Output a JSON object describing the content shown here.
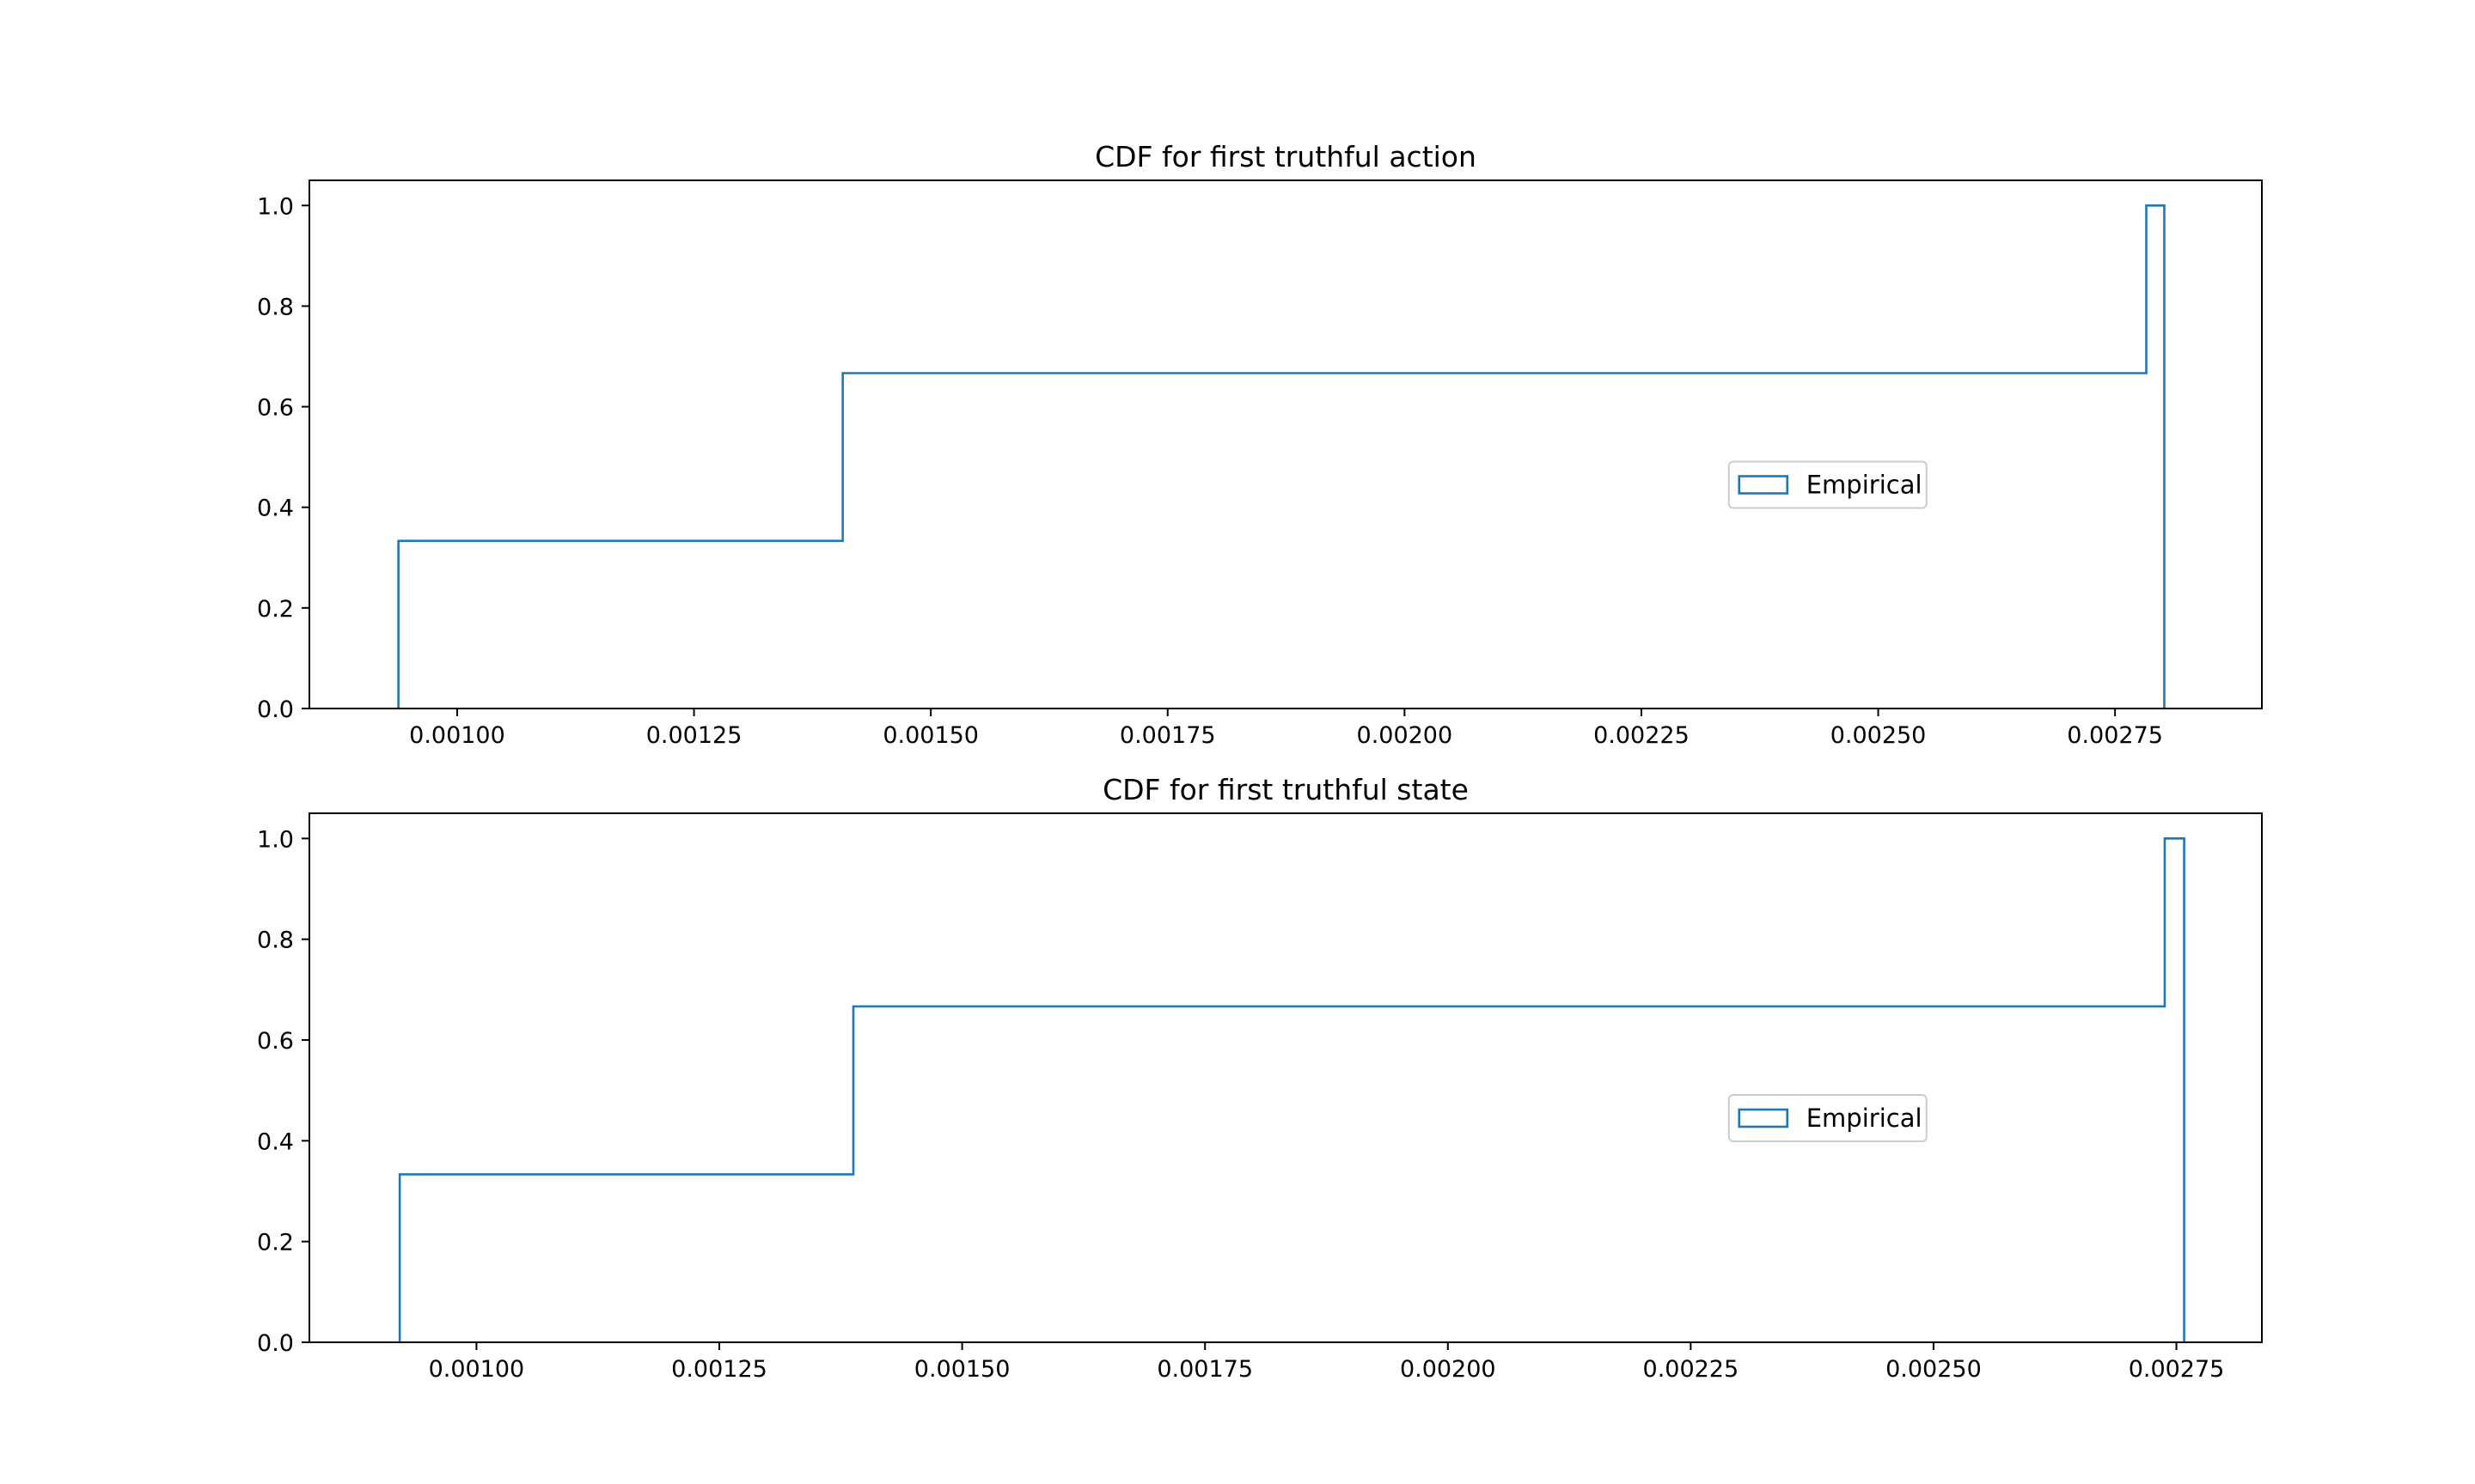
{
  "chart_data": [
    {
      "type": "step",
      "title": "CDF for first truthful action",
      "xlabel": "",
      "ylabel": "",
      "xlim": [
        0.000844,
        0.002905
      ],
      "ylim": [
        0.0,
        1.05
      ],
      "xticks": [
        0.001,
        0.00125,
        0.0015,
        0.00175,
        0.002,
        0.00225,
        0.0025,
        0.00275
      ],
      "xtick_labels": [
        "0.00100",
        "0.00125",
        "0.00150",
        "0.00175",
        "0.00200",
        "0.00225",
        "0.00250",
        "0.00275"
      ],
      "yticks": [
        0.0,
        0.2,
        0.4,
        0.6,
        0.8,
        1.0
      ],
      "ytick_labels": [
        "0.0",
        "0.2",
        "0.4",
        "0.6",
        "0.8",
        "1.0"
      ],
      "series": [
        {
          "name": "Empirical",
          "color": "#1f77b4",
          "bin_edges": [
            0.000938,
            0.001407,
            0.002783,
            0.002802
          ],
          "values": [
            0.3333,
            0.6667,
            1.0
          ]
        }
      ],
      "legend": {
        "position": "center-right"
      },
      "grid": false
    },
    {
      "type": "step",
      "title": "CDF for first truthful state",
      "xlabel": "",
      "ylabel": "",
      "xlim": [
        0.000828,
        0.002838
      ],
      "ylim": [
        0.0,
        1.05
      ],
      "xticks": [
        0.001,
        0.00125,
        0.0015,
        0.00175,
        0.002,
        0.00225,
        0.0025,
        0.00275
      ],
      "xtick_labels": [
        "0.00100",
        "0.00125",
        "0.00150",
        "0.00175",
        "0.00200",
        "0.00225",
        "0.00250",
        "0.00275"
      ],
      "yticks": [
        0.0,
        0.2,
        0.4,
        0.6,
        0.8,
        1.0
      ],
      "ytick_labels": [
        "0.0",
        "0.2",
        "0.4",
        "0.6",
        "0.8",
        "1.0"
      ],
      "series": [
        {
          "name": "Empirical",
          "color": "#1f77b4",
          "bin_edges": [
            0.000921,
            0.001388,
            0.002738,
            0.002758
          ],
          "values": [
            0.3333,
            0.6667,
            1.0
          ]
        }
      ],
      "legend": {
        "position": "center-right"
      },
      "grid": false
    }
  ]
}
